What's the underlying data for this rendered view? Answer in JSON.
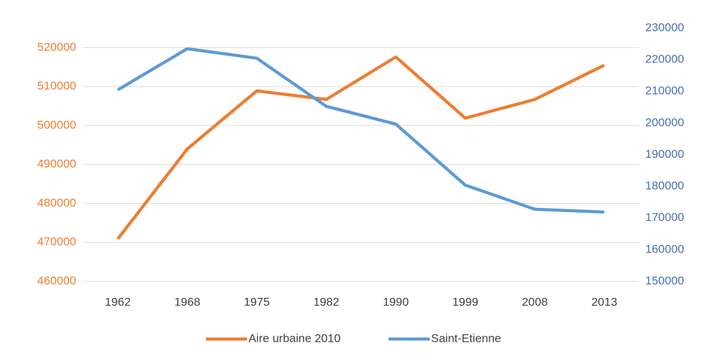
{
  "chart_data": {
    "type": "line",
    "categories": [
      "1962",
      "1968",
      "1975",
      "1982",
      "1990",
      "1999",
      "2008",
      "2013"
    ],
    "series": [
      {
        "name": "Aire urbaine 2010",
        "color": "#ed7d31",
        "axis": "y",
        "values": [
          470900,
          494000,
          508900,
          506700,
          517600,
          501900,
          506700,
          515500
        ]
      },
      {
        "name": "Saint-Etienne",
        "color": "#5b9bd5",
        "axis": "y2",
        "values": [
          210500,
          223500,
          220500,
          205300,
          199700,
          180400,
          172800,
          171900
        ]
      }
    ],
    "ylim": [
      460000,
      525000
    ],
    "yticks": [
      460000,
      470000,
      480000,
      490000,
      500000,
      510000,
      520000
    ],
    "y2lim": [
      150000,
      230000
    ],
    "y2ticks": [
      150000,
      160000,
      170000,
      180000,
      190000,
      200000,
      210000,
      220000,
      230000
    ],
    "grid": true,
    "legend": "bottom"
  }
}
